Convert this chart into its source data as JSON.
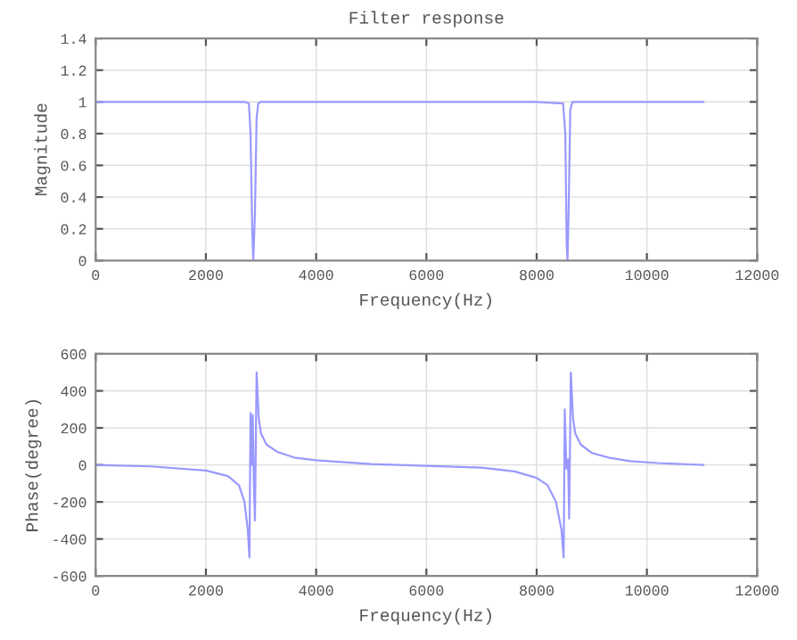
{
  "chart_data": [
    {
      "type": "line",
      "title": "Filter response",
      "xlabel": "Frequency(Hz)",
      "ylabel": "Magnitude",
      "xlim": [
        0,
        12000
      ],
      "ylim": [
        0,
        1.4
      ],
      "xticks": [
        0,
        2000,
        4000,
        6000,
        8000,
        10000,
        12000
      ],
      "yticks": [
        0,
        0.2,
        0.4,
        0.6,
        0.8,
        1,
        1.2,
        1.4
      ],
      "grid": true,
      "series": [
        {
          "color": "#9999ff",
          "x": [
            0,
            1000,
            2000,
            2700,
            2780,
            2810,
            2840,
            2860,
            2890,
            2920,
            2950,
            3000,
            4000,
            6000,
            8000,
            8480,
            8520,
            8545,
            8560,
            8580,
            8610,
            8650,
            9000,
            10000,
            11025
          ],
          "values": [
            1,
            1,
            1,
            1,
            0.99,
            0.8,
            0.2,
            0,
            0.3,
            0.9,
            0.99,
            1,
            1,
            1,
            1,
            0.99,
            0.8,
            0.1,
            0,
            0.3,
            0.95,
            1,
            1,
            1,
            1
          ]
        }
      ]
    },
    {
      "type": "line",
      "xlabel": "Frequency(Hz)",
      "ylabel": "Phase(degree)",
      "xlim": [
        0,
        12000
      ],
      "ylim": [
        -600,
        600
      ],
      "xticks": [
        0,
        2000,
        4000,
        6000,
        8000,
        10000,
        12000
      ],
      "yticks": [
        -600,
        -400,
        -200,
        0,
        200,
        400,
        600
      ],
      "grid": true,
      "series": [
        {
          "color": "#9999ff",
          "x": [
            0,
            1000,
            2000,
            2400,
            2600,
            2700,
            2760,
            2790,
            2810,
            2830,
            2850,
            2870,
            2890,
            2920,
            2960,
            3000,
            3100,
            3300,
            3600,
            4000,
            5000,
            6000,
            7000,
            7600,
            8000,
            8200,
            8350,
            8450,
            8490,
            8510,
            8540,
            8570,
            8590,
            8620,
            8660,
            8700,
            8800,
            9000,
            9300,
            9700,
            10200,
            11025
          ],
          "values": [
            0,
            -8,
            -30,
            -60,
            -110,
            -200,
            -350,
            -500,
            280,
            0,
            270,
            -100,
            -300,
            500,
            250,
            170,
            110,
            70,
            40,
            25,
            5,
            -5,
            -15,
            -35,
            -70,
            -110,
            -200,
            -350,
            -500,
            300,
            -20,
            30,
            -290,
            500,
            250,
            170,
            110,
            65,
            40,
            20,
            10,
            0
          ]
        }
      ]
    }
  ]
}
